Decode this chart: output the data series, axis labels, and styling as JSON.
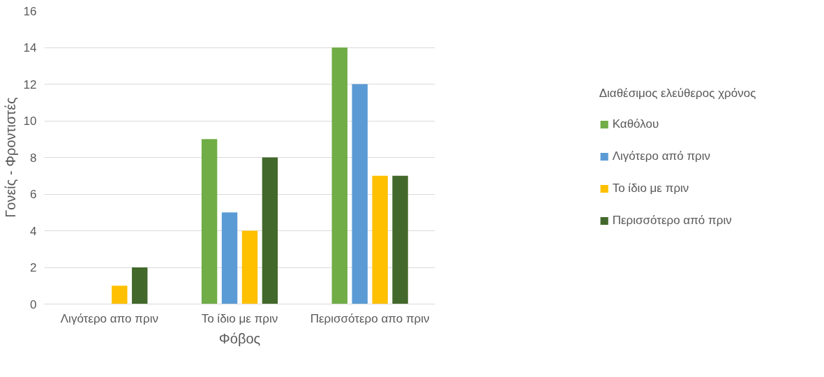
{
  "chart_data": {
    "type": "bar",
    "xlabel": "Φόβος",
    "ylabel": "Γονείς - Φροντιστές",
    "legend_title": "Διαθέσιμος ελεύθερος χρόνος",
    "categories": [
      "Λιγότερο απο πριν",
      "Το ίδιο με πριν",
      "Περισσότερο απο πριν"
    ],
    "series": [
      {
        "name": "Καθόλου",
        "color": "#70ad47",
        "values": [
          0,
          9,
          14
        ]
      },
      {
        "name": "Λιγότερο από πριν",
        "color": "#5b9bd5",
        "values": [
          0,
          5,
          12
        ]
      },
      {
        "name": "Το ίδιο με πριν",
        "color": "#ffc000",
        "values": [
          1,
          4,
          7
        ]
      },
      {
        "name": "Περισσότερο από πριν",
        "color": "#43682b",
        "values": [
          2,
          8,
          7
        ]
      }
    ],
    "ylim": [
      0,
      16
    ],
    "yticks": [
      0,
      2,
      4,
      6,
      8,
      10,
      12,
      14,
      16
    ],
    "grid": "y",
    "legend": "right"
  }
}
